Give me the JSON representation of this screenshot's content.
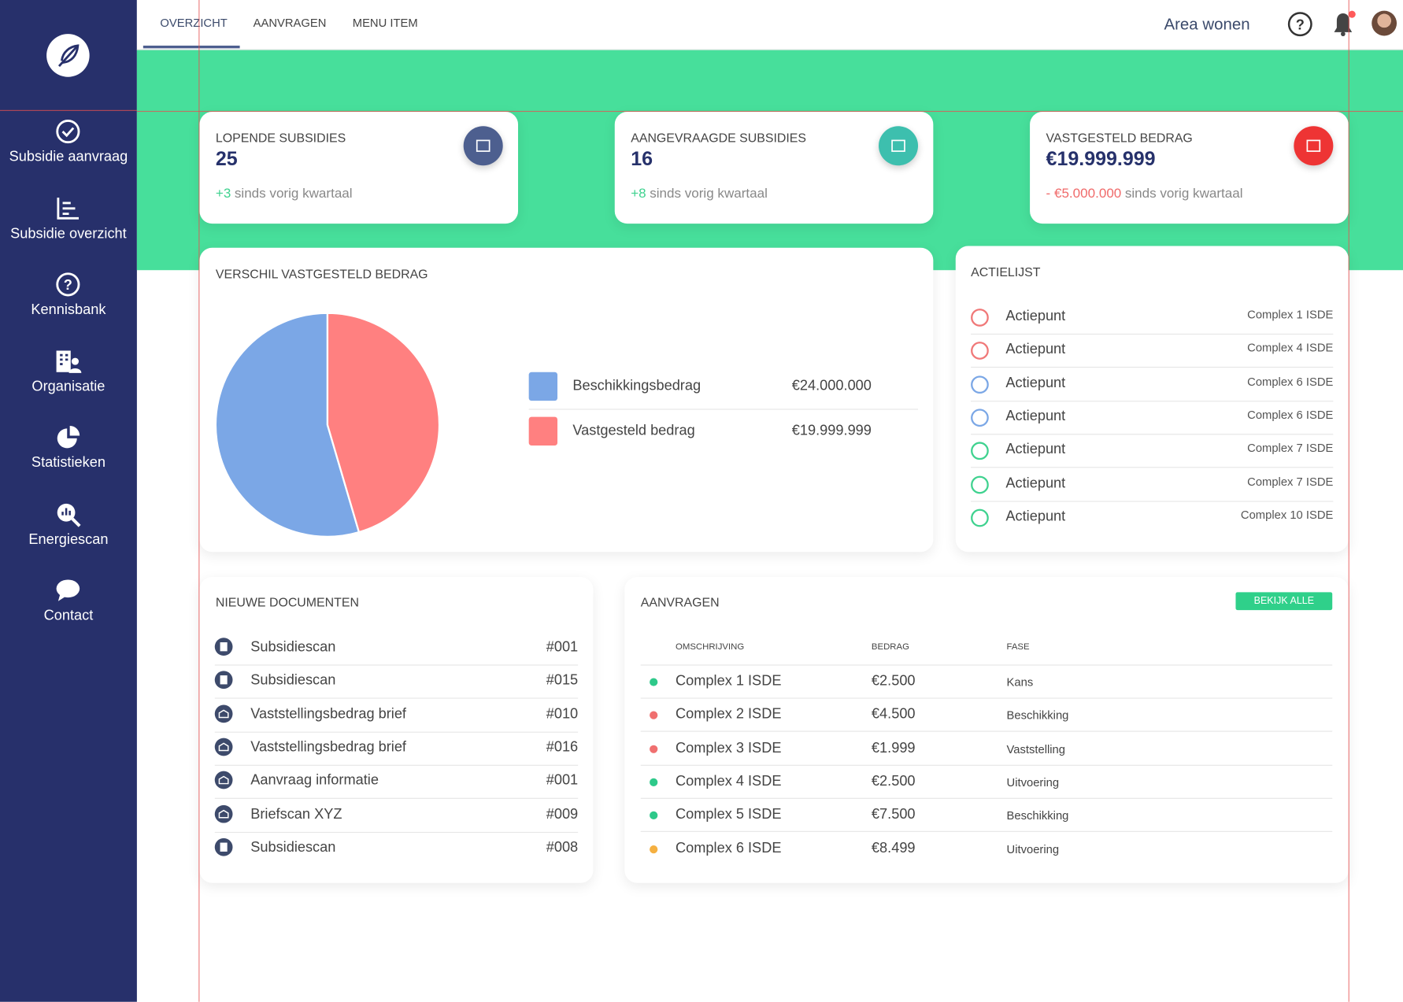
{
  "sidebar": {
    "items": [
      "Subsidie aanvraag",
      "Subsidie overzicht",
      "Kennisbank",
      "Organisatie",
      "Statistieken",
      "Energiescan",
      "Contact"
    ]
  },
  "topbar": {
    "tabs": [
      "OVERZICHT",
      "AANVRAGEN",
      "MENU ITEM"
    ],
    "area": "Area wonen"
  },
  "stats": [
    {
      "title": "LOPENDE SUBSIDIES",
      "value": "25",
      "change": "+3",
      "change_text": "sinds vorig kwartaal",
      "change_color": "#3fd28f",
      "icon_color": "#4d5f8f"
    },
    {
      "title": "AANGEVRAAGDE SUBSIDIES",
      "value": "16",
      "change": "+8",
      "change_text": "sinds vorig kwartaal",
      "change_color": "#3fd28f",
      "icon_color": "#3dbfae"
    },
    {
      "title": "VASTGESTELD BEDRAG",
      "value": "€19.999.999",
      "change": "- €5.000.000",
      "change_text": "sinds vorig kwartaal",
      "change_color": "#f06a6a",
      "icon_color": "#ee3434"
    }
  ],
  "pie_chart": {
    "type": "pie",
    "title": "VERSCHIL VASTGESTELD BEDRAG",
    "categories": [
      "Beschikkingsbedrag",
      "Vastgesteld bedrag"
    ],
    "values": [
      24000000,
      19999999
    ],
    "value_labels": [
      "€24.000.000",
      "€19.999.999"
    ],
    "colors": [
      "#7ba7e6",
      "#ff8080"
    ]
  },
  "actielijst": {
    "title": "ACTIELIJST",
    "items": [
      {
        "label": "Actiepunt",
        "detail": "Complex 1 ISDE",
        "color": "#f07878"
      },
      {
        "label": "Actiepunt",
        "detail": "Complex 4 ISDE",
        "color": "#f07878"
      },
      {
        "label": "Actiepunt",
        "detail": "Complex 6 ISDE",
        "color": "#7ba7e6"
      },
      {
        "label": "Actiepunt",
        "detail": "Complex 6 ISDE",
        "color": "#7ba7e6"
      },
      {
        "label": "Actiepunt",
        "detail": "Complex 7 ISDE",
        "color": "#3fd28f"
      },
      {
        "label": "Actiepunt",
        "detail": "Complex 7 ISDE",
        "color": "#3fd28f"
      },
      {
        "label": "Actiepunt",
        "detail": "Complex 10 ISDE",
        "color": "#3fd28f"
      }
    ]
  },
  "documents": {
    "title": "NIEUWE DOCUMENTEN",
    "items": [
      {
        "name": "Subsidiescan",
        "id": "#001",
        "icon": "pdf"
      },
      {
        "name": "Subsidiescan",
        "id": "#015",
        "icon": "pdf"
      },
      {
        "name": "Vaststellingsbedrag brief",
        "id": "#010",
        "icon": "inbox"
      },
      {
        "name": "Vaststellingsbedrag brief",
        "id": "#016",
        "icon": "inbox"
      },
      {
        "name": "Aanvraag informatie",
        "id": "#001",
        "icon": "inbox"
      },
      {
        "name": "Briefscan XYZ",
        "id": "#009",
        "icon": "inbox"
      },
      {
        "name": "Subsidiescan",
        "id": "#008",
        "icon": "pdf"
      }
    ]
  },
  "aanvragen": {
    "title": "AANVRAGEN",
    "button": "BEKIJK ALLE",
    "columns": [
      "OMSCHRIJVING",
      "BEDRAG",
      "FASE"
    ],
    "rows": [
      {
        "color": "#2ec98a",
        "omschrijving": "Complex 1 ISDE",
        "bedrag": "€2.500",
        "fase": "Kans"
      },
      {
        "color": "#f07070",
        "omschrijving": "Complex 2 ISDE",
        "bedrag": "€4.500",
        "fase": "Beschikking"
      },
      {
        "color": "#f07070",
        "omschrijving": "Complex 3 ISDE",
        "bedrag": "€1.999",
        "fase": "Vaststelling"
      },
      {
        "color": "#2ec98a",
        "omschrijving": "Complex 4 ISDE",
        "bedrag": "€2.500",
        "fase": "Uitvoering"
      },
      {
        "color": "#2ec98a",
        "omschrijving": "Complex 5 ISDE",
        "bedrag": "€7.500",
        "fase": "Beschikking"
      },
      {
        "color": "#f5b041",
        "omschrijving": "Complex 6 ISDE",
        "bedrag": "€8.499",
        "fase": "Uitvoering"
      }
    ]
  }
}
